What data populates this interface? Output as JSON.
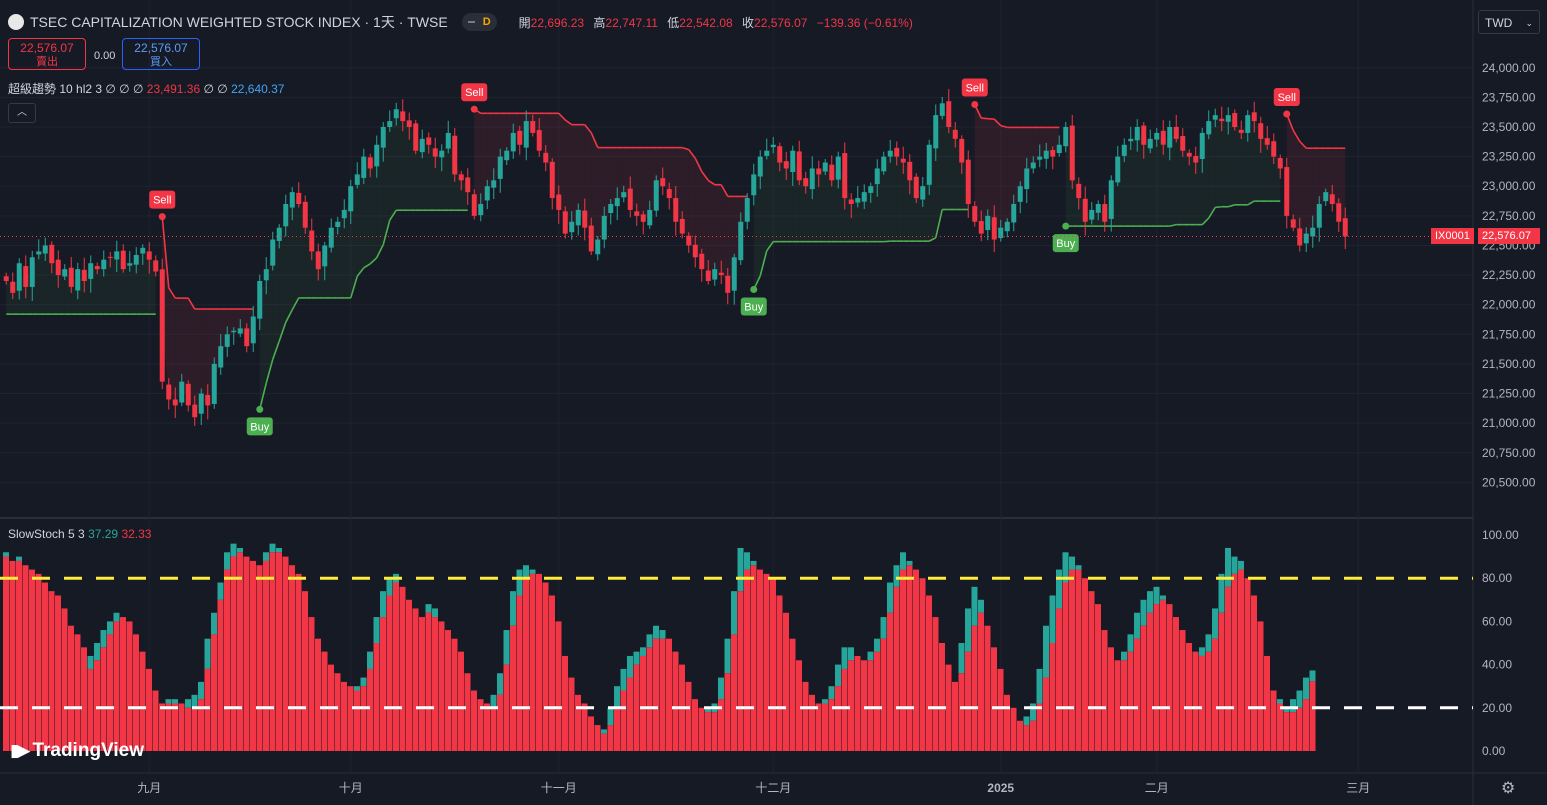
{
  "header": {
    "title": "TSEC CAPITALIZATION WEIGHTED STOCK INDEX · 1天 · TWSE",
    "badge": "D",
    "open_label": "開",
    "open": "22,696.23",
    "high_label": "高",
    "high": "22,747.11",
    "low_label": "低",
    "low": "22,542.08",
    "close_label": "收",
    "close": "22,576.07",
    "change": "−139.36 (−0.61%)"
  },
  "trade": {
    "sell_price": "22,576.07",
    "sell_label": "賣出",
    "spread": "0.00",
    "buy_price": "22,576.07",
    "buy_label": "買入"
  },
  "indicator1": {
    "name": "超級趨勢 10 hl2 3",
    "marks": "∅ ∅ ∅",
    "value_red": "23,491.36",
    "marks2": "∅ ∅",
    "value_green": "22,640.37"
  },
  "indicator2": {
    "name": "SlowStoch 5 3",
    "k": "37.29",
    "d": "32.33"
  },
  "currency": "TWD",
  "symbol_tag": "IX0001",
  "last_price_tag": "22,576.07",
  "logo": "TradingView",
  "colors": {
    "up": "#26a69a",
    "down": "#f23645",
    "bg": "#161a25",
    "st_up": "#4caf50",
    "st_down": "#f23645"
  },
  "chart_data": [
    {
      "type": "candlestick",
      "title": "TSEC CAPITALIZATION WEIGHTED STOCK INDEX",
      "y_ticks": [
        "20,500.00",
        "20,750.00",
        "21,000.00",
        "21,250.00",
        "21,500.00",
        "21,750.00",
        "22,000.00",
        "22,250.00",
        "22,500.00",
        "22,750.00",
        "23,000.00",
        "23,250.00",
        "23,500.00",
        "23,750.00",
        "24,000.00"
      ],
      "ylim": [
        20250,
        24150
      ],
      "x_ticks": [
        {
          "label": "九月",
          "index": 22
        },
        {
          "label": "十月",
          "index": 53
        },
        {
          "label": "十一月",
          "index": 85
        },
        {
          "label": "十二月",
          "index": 118
        },
        {
          "label": "2025",
          "index": 153
        },
        {
          "label": "二月",
          "index": 177
        },
        {
          "label": "三月",
          "index": 208
        }
      ],
      "closes": [
        22200,
        22100,
        22350,
        22150,
        22400,
        22450,
        22500,
        22350,
        22250,
        22300,
        22150,
        22300,
        22200,
        22350,
        22300,
        22380,
        22400,
        22450,
        22300,
        22350,
        22420,
        22480,
        22380,
        22280,
        21350,
        21200,
        21150,
        21350,
        21150,
        21050,
        21250,
        21150,
        21500,
        21650,
        21750,
        21780,
        21800,
        21650,
        21900,
        22200,
        22300,
        22550,
        22650,
        22850,
        22950,
        22850,
        22650,
        22450,
        22300,
        22500,
        22650,
        22700,
        22800,
        23000,
        23100,
        23250,
        23150,
        23350,
        23500,
        23550,
        23650,
        23550,
        23500,
        23300,
        23400,
        23350,
        23250,
        23300,
        23450,
        23100,
        23050,
        22950,
        22750,
        22850,
        23000,
        23050,
        23250,
        23300,
        23450,
        23350,
        23550,
        23450,
        23300,
        23200,
        22900,
        22800,
        22600,
        22700,
        22800,
        22650,
        22450,
        22550,
        22750,
        22850,
        22900,
        22950,
        22800,
        22750,
        22700,
        22800,
        23050,
        23000,
        22900,
        22700,
        22600,
        22500,
        22400,
        22300,
        22200,
        22300,
        22250,
        22100,
        22400,
        22700,
        22900,
        23100,
        23250,
        23300,
        23350,
        23200,
        23150,
        23300,
        23050,
        23000,
        23150,
        23100,
        23200,
        23050,
        23250,
        22900,
        22850,
        22900,
        22950,
        23000,
        23150,
        23250,
        23300,
        23250,
        23200,
        23050,
        22900,
        23000,
        23350,
        23600,
        23700,
        23500,
        23400,
        23200,
        22850,
        22700,
        22600,
        22750,
        22550,
        22650,
        22700,
        22850,
        23000,
        23150,
        23200,
        23250,
        23300,
        23250,
        23350,
        23500,
        23050,
        22900,
        22700,
        22800,
        22850,
        22700,
        23050,
        23250,
        23350,
        23400,
        23500,
        23350,
        23400,
        23450,
        23350,
        23500,
        23400,
        23300,
        23250,
        23200,
        23450,
        23550,
        23600,
        23550,
        23600,
        23500,
        23450,
        23600,
        23550,
        23400,
        23350,
        23250,
        23150,
        22750,
        22650,
        22500,
        22600,
        22650,
        22850,
        22950,
        22850,
        22700,
        22576
      ]
    },
    {
      "type": "bar",
      "title": "SlowStoch 5 3",
      "y_ticks": [
        "0.00",
        "20.00",
        "40.00",
        "60.00",
        "80.00",
        "100.00"
      ],
      "ylim": [
        0,
        100
      ],
      "levels": [
        20,
        80
      ],
      "series": [
        {
          "name": "%K",
          "values": [
            92,
            88,
            90,
            86,
            84,
            82,
            78,
            74,
            72,
            66,
            58,
            54,
            48,
            44,
            50,
            56,
            60,
            64,
            62,
            60,
            54,
            46,
            38,
            28,
            22,
            24,
            24,
            22,
            24,
            26,
            32,
            52,
            64,
            78,
            92,
            96,
            94,
            90,
            88,
            86,
            92,
            96,
            94,
            90,
            86,
            82,
            74,
            62,
            52,
            46,
            40,
            36,
            32,
            30,
            30,
            34,
            46,
            62,
            74,
            80,
            82,
            76,
            70,
            66,
            62,
            68,
            66,
            60,
            56,
            52,
            46,
            36,
            28,
            24,
            22,
            26,
            36,
            56,
            74,
            84,
            86,
            84,
            82,
            78,
            72,
            60,
            44,
            34,
            26,
            22,
            16,
            12,
            10,
            20,
            30,
            38,
            44,
            46,
            48,
            54,
            58,
            56,
            52,
            46,
            40,
            32,
            24,
            20,
            20,
            22,
            34,
            52,
            74,
            94,
            92,
            88,
            84,
            82,
            80,
            72,
            64,
            52,
            42,
            32,
            26,
            22,
            24,
            30,
            40,
            48,
            48,
            44,
            42,
            46,
            52,
            62,
            78,
            86,
            92,
            88,
            84,
            80,
            72,
            62,
            50,
            40,
            32,
            50,
            66,
            76,
            70,
            58,
            48,
            38,
            26,
            20,
            14,
            16,
            22,
            38,
            58,
            72,
            84,
            92,
            90,
            86,
            80,
            74,
            68,
            56,
            48,
            42,
            46,
            54,
            64,
            70,
            74,
            76,
            72,
            68,
            62,
            56,
            50,
            46,
            48,
            54,
            66,
            82,
            94,
            90,
            88,
            80,
            72,
            60,
            44,
            28,
            24,
            20,
            24,
            28,
            34,
            37.29
          ]
        },
        {
          "name": "%D",
          "values": [
            90,
            88,
            88,
            86,
            84,
            82,
            78,
            74,
            72,
            66,
            58,
            54,
            48,
            38,
            42,
            48,
            54,
            60,
            62,
            60,
            54,
            46,
            38,
            28,
            22,
            22,
            22,
            22,
            20,
            20,
            24,
            38,
            54,
            70,
            84,
            90,
            92,
            90,
            88,
            86,
            88,
            92,
            92,
            90,
            86,
            82,
            74,
            62,
            52,
            46,
            40,
            36,
            32,
            30,
            28,
            30,
            38,
            50,
            62,
            72,
            78,
            76,
            70,
            66,
            62,
            64,
            62,
            60,
            56,
            52,
            46,
            36,
            28,
            24,
            22,
            20,
            26,
            40,
            58,
            72,
            80,
            82,
            82,
            78,
            72,
            60,
            44,
            34,
            26,
            22,
            16,
            12,
            8,
            12,
            20,
            28,
            34,
            40,
            44,
            48,
            52,
            52,
            52,
            46,
            40,
            32,
            24,
            20,
            18,
            18,
            24,
            36,
            54,
            74,
            84,
            86,
            84,
            82,
            80,
            72,
            64,
            52,
            42,
            32,
            26,
            22,
            22,
            24,
            30,
            38,
            42,
            44,
            42,
            42,
            46,
            52,
            64,
            76,
            84,
            86,
            84,
            80,
            72,
            62,
            50,
            40,
            32,
            36,
            46,
            58,
            64,
            58,
            48,
            38,
            26,
            20,
            14,
            12,
            14,
            22,
            34,
            50,
            66,
            78,
            84,
            84,
            80,
            74,
            68,
            56,
            48,
            42,
            42,
            46,
            52,
            58,
            64,
            68,
            70,
            68,
            62,
            56,
            50,
            46,
            44,
            46,
            52,
            64,
            76,
            82,
            84,
            80,
            72,
            60,
            44,
            28,
            22,
            18,
            18,
            20,
            24,
            32.33
          ]
        }
      ]
    }
  ]
}
